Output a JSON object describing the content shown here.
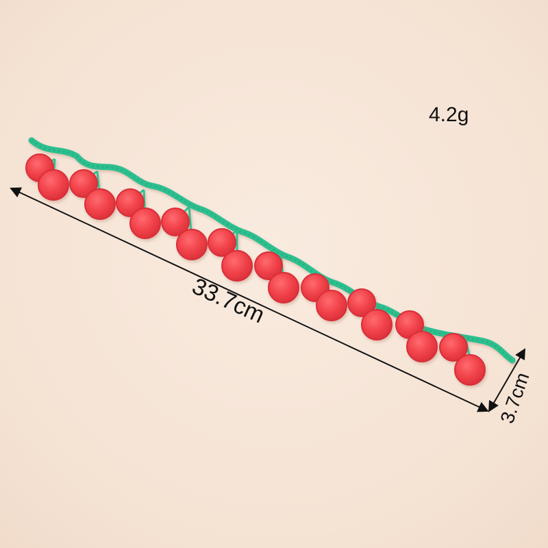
{
  "product": {
    "name": "cherry-lace-trim",
    "colors": {
      "background": "#f6e6d8",
      "cherry": "#f1424a",
      "cherry_dark": "#d92f39",
      "stem": "#2fbf8f",
      "stem_dark": "#1ea57a",
      "arrow": "#111111"
    }
  },
  "labels": {
    "weight": "4.2g",
    "length": "33.7cm",
    "width": "3.7cm"
  }
}
